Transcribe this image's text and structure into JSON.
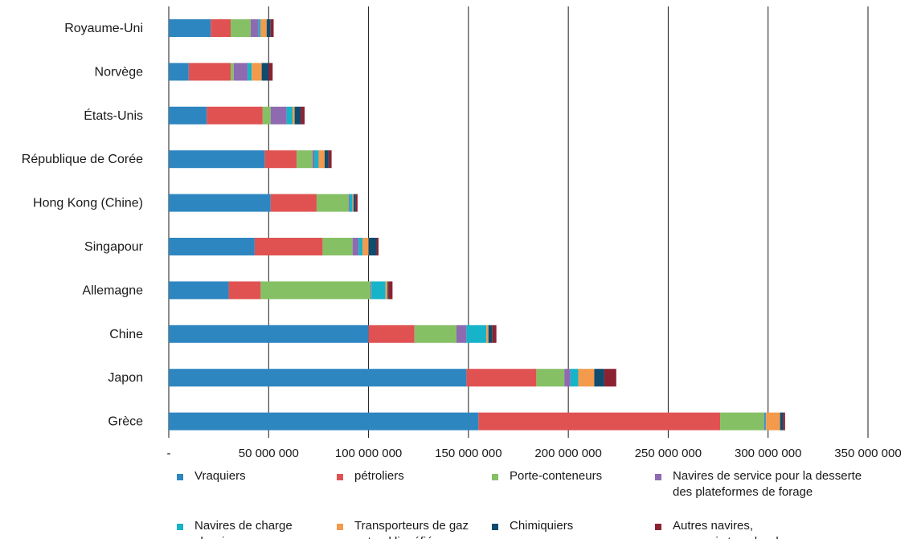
{
  "chart_data": {
    "type": "bar",
    "orientation": "horizontal",
    "stacked": true,
    "categories": [
      "Royaume-Uni",
      "Norvège",
      "États-Unis",
      "République de Corée",
      "Hong Kong (Chine)",
      "Singapour",
      "Allemagne",
      "Chine",
      "Japon",
      "Grèce"
    ],
    "series": [
      {
        "name": "Vraquiers",
        "color": "#2e86c1",
        "values": [
          21000000,
          10000000,
          19000000,
          48000000,
          51000000,
          43000000,
          30000000,
          100000000,
          149000000,
          155000000
        ]
      },
      {
        "name": "pétroliers",
        "color": "#e05252",
        "values": [
          10000000,
          21000000,
          28000000,
          16000000,
          23000000,
          34000000,
          16000000,
          23000000,
          35000000,
          121000000
        ]
      },
      {
        "name": "Porte-conteneurs",
        "color": "#85c065",
        "values": [
          10000000,
          1500000,
          4000000,
          8000000,
          16000000,
          15000000,
          55000000,
          21000000,
          14000000,
          22000000
        ]
      },
      {
        "name": "Navires de service pour la desserte\ndes plateformes de forage",
        "color": "#8e6bb0",
        "values": [
          4000000,
          7000000,
          8000000,
          1000000,
          500000,
          3000000,
          500000,
          5000000,
          3000000,
          500000
        ]
      },
      {
        "name": "Navires de charge\nclassiques",
        "color": "#16b3c9",
        "values": [
          1000000,
          2000000,
          3000000,
          2000000,
          1500000,
          2000000,
          7000000,
          10000000,
          4000000,
          500000
        ]
      },
      {
        "name": "Transporteurs de gaz\nnaturel liquéfié",
        "color": "#f39a4c",
        "values": [
          3000000,
          5000000,
          1000000,
          3000000,
          500000,
          3000000,
          1000000,
          1000000,
          8000000,
          7000000
        ]
      },
      {
        "name": "Chimiquiers",
        "color": "#0f4c6e",
        "values": [
          2000000,
          3500000,
          3000000,
          2000000,
          1000000,
          4000000,
          500000,
          2000000,
          5000000,
          1500000
        ]
      },
      {
        "name": "Autres navires,\ny compris transbordeurs",
        "color": "#8b2232",
        "values": [
          1500000,
          2000000,
          2000000,
          1500000,
          1000000,
          1000000,
          2000000,
          2000000,
          6000000,
          1000000
        ]
      }
    ],
    "x_ticks": [
      "-",
      "50 000 000",
      "100 000 000",
      "150 000 000",
      "200 000 000",
      "250 000 000",
      "300 000 000",
      "350 000 000"
    ],
    "xlim": [
      0,
      350000000
    ],
    "grid": "vertical",
    "legend_position": "bottom"
  }
}
